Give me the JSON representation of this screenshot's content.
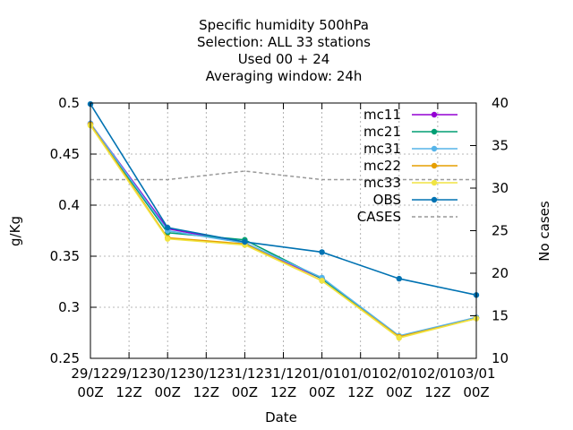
{
  "chart_data": {
    "type": "line",
    "title_lines": [
      "Specific humidity 500hPa",
      "Selection: ALL      33 stations",
      "Used  00 + 24",
      "Averaging window: 24h"
    ],
    "xlabel": "Date",
    "ylabel": "g/Kg",
    "y2label": "No cases",
    "ylim": [
      0.25,
      0.5
    ],
    "y2lim": [
      10,
      40
    ],
    "yticks": [
      "0.25",
      "0.3",
      "0.35",
      "0.4",
      "0.45",
      "0.5"
    ],
    "y2ticks": [
      "10",
      "15",
      "20",
      "25",
      "30",
      "35",
      "40"
    ],
    "xticks": [
      [
        "29/12",
        "00Z"
      ],
      [
        "29/12",
        "12Z"
      ],
      [
        "30/12",
        "00Z"
      ],
      [
        "30/12",
        "12Z"
      ],
      [
        "31/12",
        "00Z"
      ],
      [
        "31/12",
        "12Z"
      ],
      [
        "01/01",
        "00Z"
      ],
      [
        "01/01",
        "12Z"
      ],
      [
        "02/01",
        "00Z"
      ],
      [
        "02/01",
        "12Z"
      ],
      [
        "03/01",
        "00Z"
      ]
    ],
    "grid": true,
    "legend_position": "top-right",
    "x": [
      0,
      2,
      4,
      6,
      8,
      10
    ],
    "series": [
      {
        "name": "mc11",
        "color": "#9400d3",
        "axis": "y1",
        "marker": "point",
        "values": [
          0.48,
          0.377,
          0.363,
          0.328,
          0.271,
          0.29
        ]
      },
      {
        "name": "mc21",
        "color": "#009e73",
        "axis": "y1",
        "marker": "point",
        "values": [
          0.479,
          0.373,
          0.366,
          0.328,
          0.271,
          0.29
        ]
      },
      {
        "name": "mc31",
        "color": "#56b4e9",
        "axis": "y1",
        "marker": "point",
        "values": [
          0.48,
          0.375,
          0.363,
          0.329,
          0.272,
          0.29
        ]
      },
      {
        "name": "mc22",
        "color": "#e69f00",
        "axis": "y1",
        "marker": "point",
        "values": [
          0.479,
          0.368,
          0.362,
          0.326,
          0.271,
          0.289
        ]
      },
      {
        "name": "mc33",
        "color": "#f0e442",
        "axis": "y1",
        "marker": "point",
        "values": [
          0.478,
          0.367,
          0.361,
          0.326,
          0.27,
          0.289
        ]
      },
      {
        "name": "OBS",
        "color": "#0072b2",
        "axis": "y1",
        "marker": "point",
        "values": [
          0.499,
          0.378,
          0.364,
          0.354,
          0.328,
          0.312
        ]
      },
      {
        "name": "CASES",
        "color": "#999999",
        "axis": "y2",
        "marker": "none",
        "dashed": true,
        "values": [
          31,
          31,
          32,
          31,
          31,
          31
        ]
      }
    ]
  }
}
